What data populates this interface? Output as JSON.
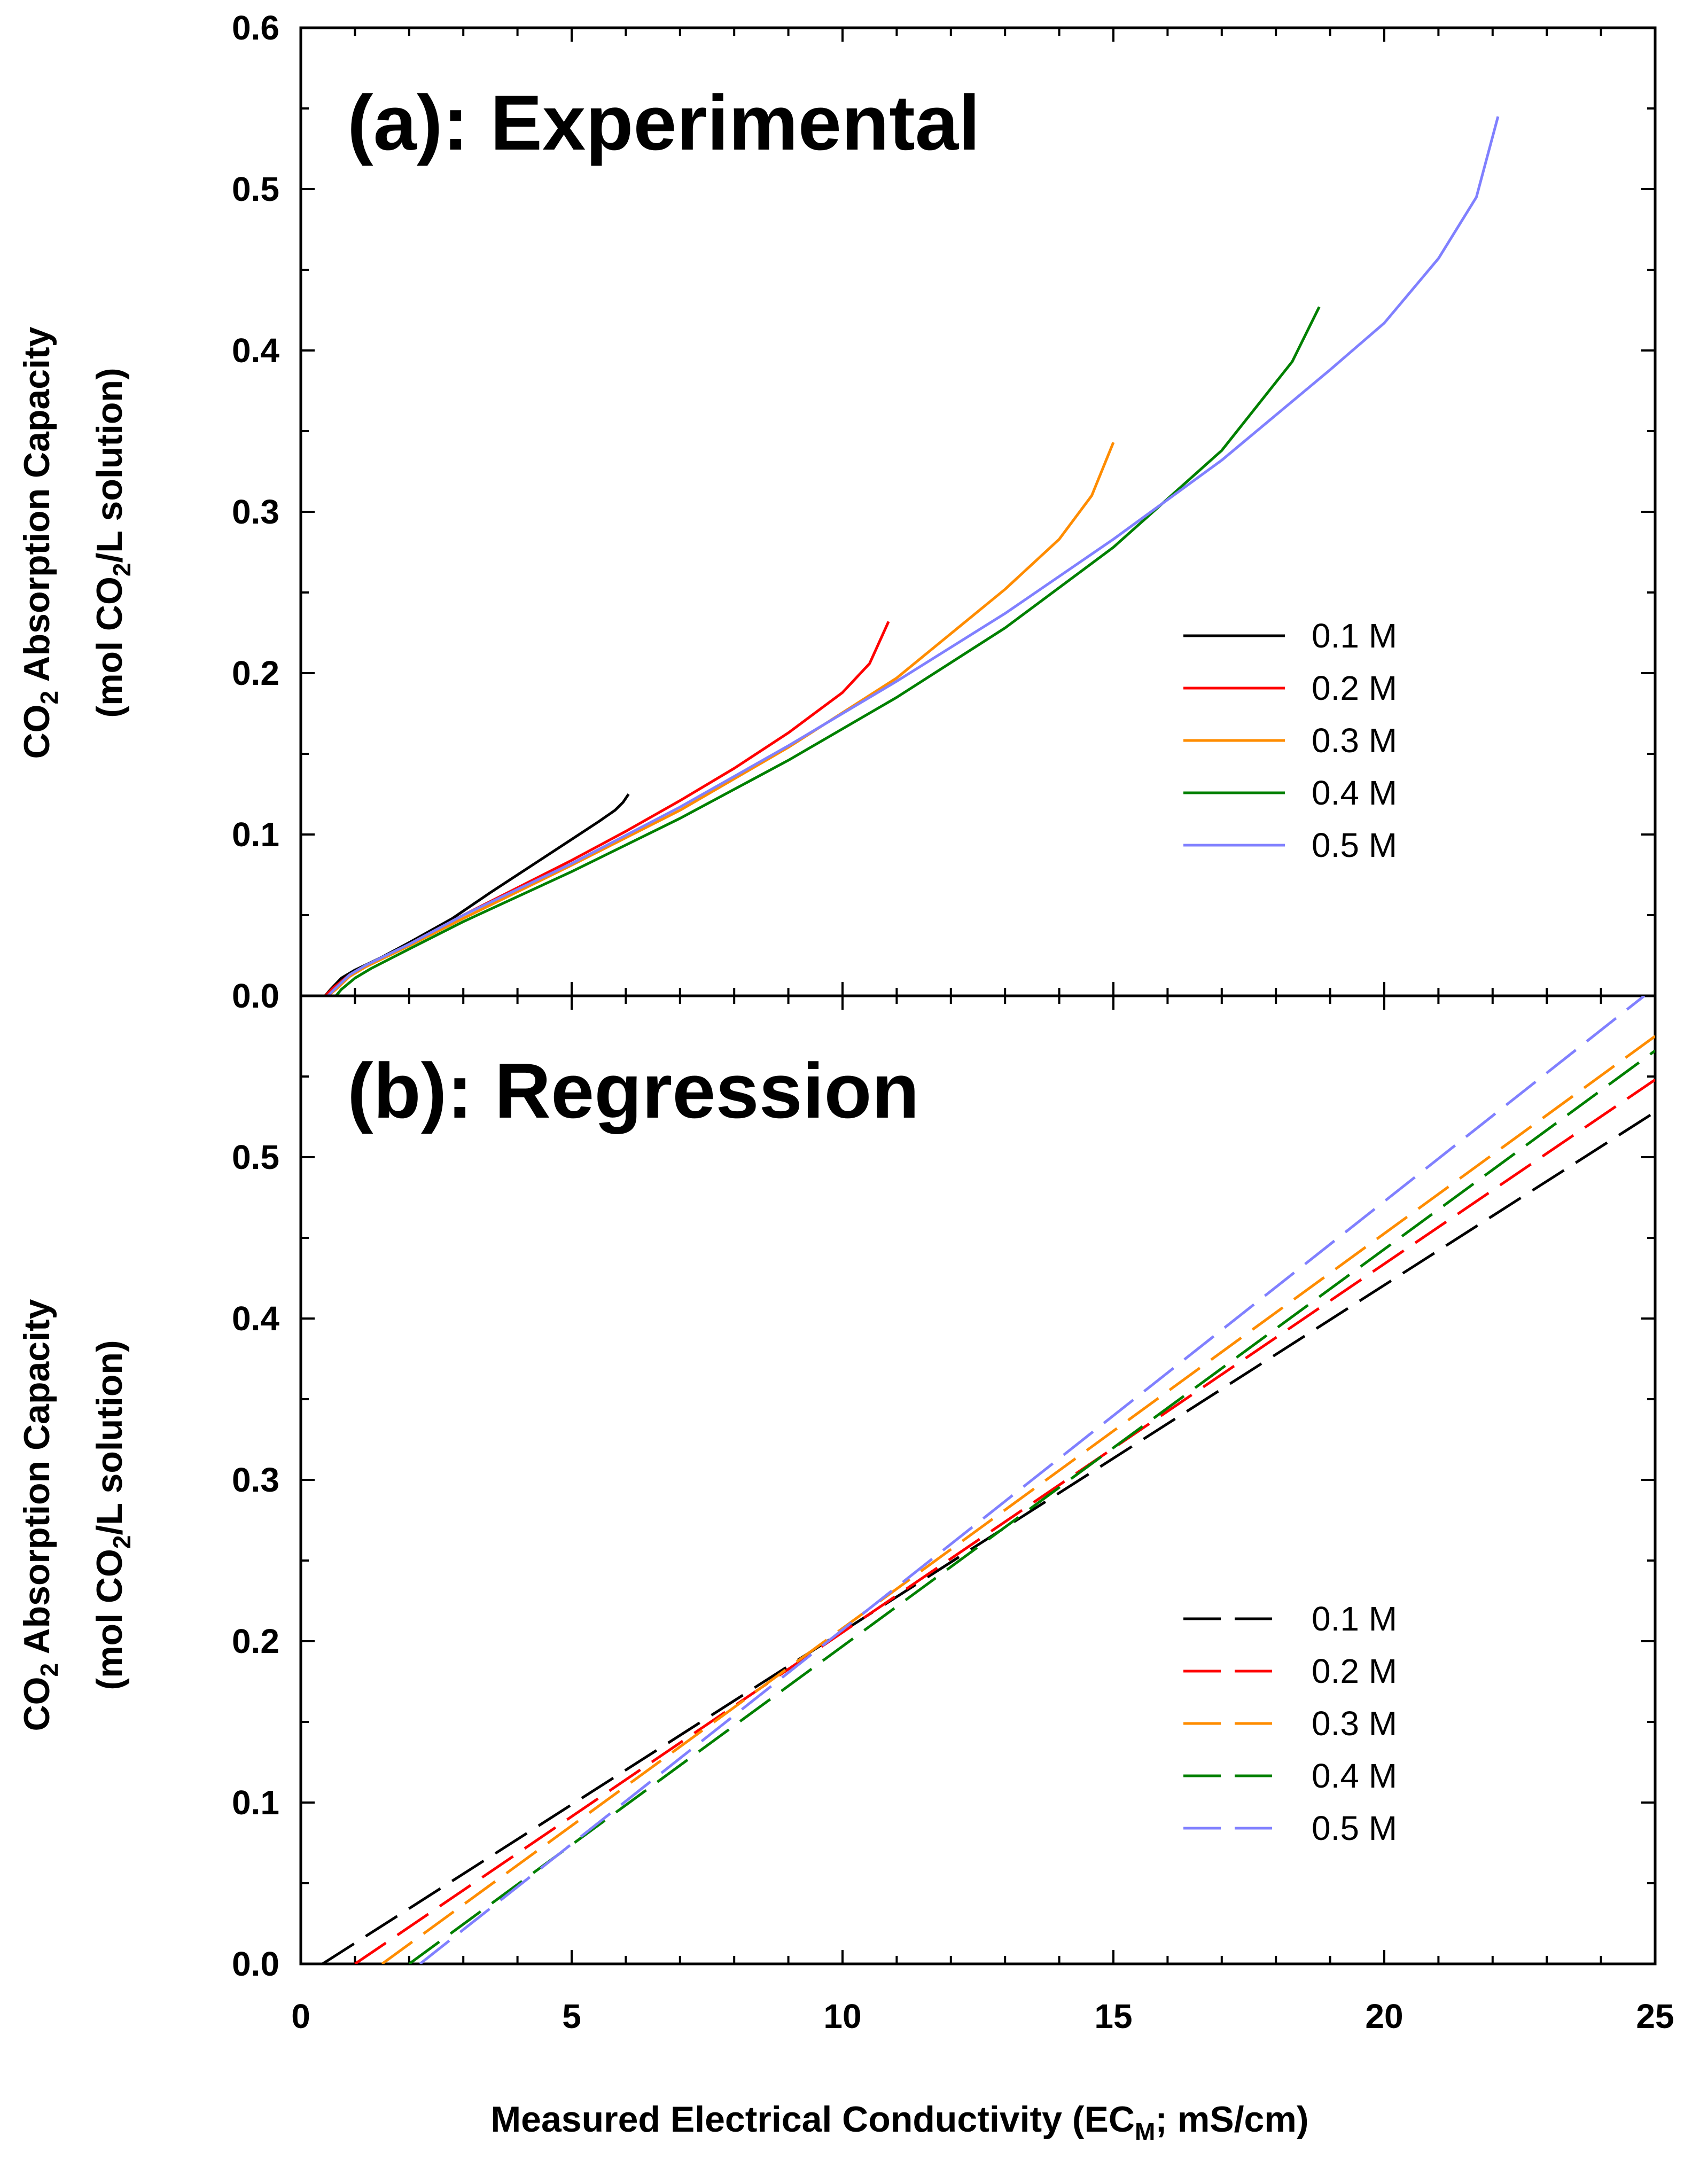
{
  "chart_data": [
    {
      "type": "line",
      "title": "(a): Experimental",
      "ylabel_line1": "CO2 Absorption Capacity",
      "ylabel_line2": "(mol CO2/L solution)",
      "xlim": [
        0,
        25
      ],
      "ylim": [
        0,
        0.6
      ],
      "xticks": [
        "0",
        "5",
        "10",
        "15",
        "20",
        "25"
      ],
      "yticks": [
        "0.0",
        "0.1",
        "0.2",
        "0.3",
        "0.4",
        "0.5",
        "0.6"
      ],
      "legend_position": "right",
      "series": [
        {
          "name": "0.1 M",
          "color": "#000000",
          "dash": "solid",
          "x": [
            0.45,
            0.55,
            0.75,
            1.0,
            1.5,
            2.0,
            2.8,
            3.5,
            4.0,
            4.5,
            5.0,
            5.5,
            5.8,
            5.95,
            6.05
          ],
          "y": [
            0.0,
            0.004,
            0.011,
            0.016,
            0.024,
            0.033,
            0.048,
            0.064,
            0.075,
            0.086,
            0.097,
            0.108,
            0.115,
            0.12,
            0.125
          ]
        },
        {
          "name": "0.2 M",
          "color": "#ff0000",
          "dash": "solid",
          "x": [
            0.45,
            0.6,
            0.9,
            1.2,
            2.0,
            3.0,
            4.0,
            5.0,
            6.0,
            7.0,
            8.0,
            9.0,
            10.0,
            10.5,
            10.85
          ],
          "y": [
            0.0,
            0.005,
            0.013,
            0.018,
            0.032,
            0.05,
            0.067,
            0.084,
            0.102,
            0.121,
            0.141,
            0.163,
            0.188,
            0.206,
            0.232
          ]
        },
        {
          "name": "0.3 M",
          "color": "#ff8c00",
          "dash": "solid",
          "x": [
            0.5,
            0.65,
            0.9,
            1.2,
            2.0,
            3.0,
            5.0,
            7.0,
            9.0,
            11.0,
            13.0,
            14.0,
            14.6,
            15.0
          ],
          "y": [
            0.0,
            0.004,
            0.012,
            0.018,
            0.031,
            0.048,
            0.081,
            0.115,
            0.154,
            0.197,
            0.252,
            0.283,
            0.31,
            0.343
          ]
        },
        {
          "name": "0.4 M",
          "color": "#008000",
          "dash": "solid",
          "x": [
            0.65,
            0.75,
            1.0,
            1.3,
            2.0,
            3.0,
            5.0,
            7.0,
            9.0,
            11.0,
            13.0,
            15.0,
            17.0,
            18.3,
            18.8
          ],
          "y": [
            0.0,
            0.004,
            0.011,
            0.017,
            0.029,
            0.046,
            0.077,
            0.11,
            0.146,
            0.185,
            0.228,
            0.278,
            0.338,
            0.393,
            0.427
          ]
        },
        {
          "name": "0.5 M",
          "color": "#8080ff",
          "dash": "solid",
          "x": [
            0.5,
            0.65,
            0.9,
            1.2,
            2.0,
            3.0,
            5.0,
            7.0,
            9.0,
            11.0,
            13.0,
            15.0,
            17.0,
            19.0,
            20.0,
            21.0,
            21.7,
            22.1
          ],
          "y": [
            0.0,
            0.005,
            0.013,
            0.019,
            0.032,
            0.05,
            0.082,
            0.117,
            0.155,
            0.195,
            0.237,
            0.283,
            0.332,
            0.388,
            0.417,
            0.457,
            0.495,
            0.545
          ]
        }
      ]
    },
    {
      "type": "line",
      "title": "(b): Regression",
      "ylabel_line1": "CO2 Absorption Capacity",
      "ylabel_line2": "(mol CO2/L solution)",
      "xlabel": "Measured Electrical Conductivity (ECM; mS/cm)",
      "xlim": [
        0,
        25
      ],
      "ylim": [
        0,
        0.6
      ],
      "xticks": [
        "0",
        "5",
        "10",
        "15",
        "20",
        "25"
      ],
      "yticks": [
        "0.0",
        "0.1",
        "0.2",
        "0.3",
        "0.4",
        "0.5"
      ],
      "legend_position": "right",
      "series": [
        {
          "name": "0.1 M",
          "color": "#000000",
          "dash": "dashed",
          "x": [
            0.4,
            25.0
          ],
          "y": [
            0.0,
            0.528
          ]
        },
        {
          "name": "0.2 M",
          "color": "#ff0000",
          "dash": "dashed",
          "x": [
            1.0,
            25.0
          ],
          "y": [
            0.0,
            0.548
          ]
        },
        {
          "name": "0.3 M",
          "color": "#ff8c00",
          "dash": "dashed",
          "x": [
            1.5,
            25.0
          ],
          "y": [
            0.0,
            0.575
          ]
        },
        {
          "name": "0.4 M",
          "color": "#008000",
          "dash": "dashed",
          "x": [
            2.0,
            25.0
          ],
          "y": [
            0.0,
            0.566
          ]
        },
        {
          "name": "0.5 M",
          "color": "#8080ff",
          "dash": "dashed",
          "x": [
            2.2,
            24.8
          ],
          "y": [
            0.0,
            0.6
          ]
        }
      ]
    }
  ]
}
